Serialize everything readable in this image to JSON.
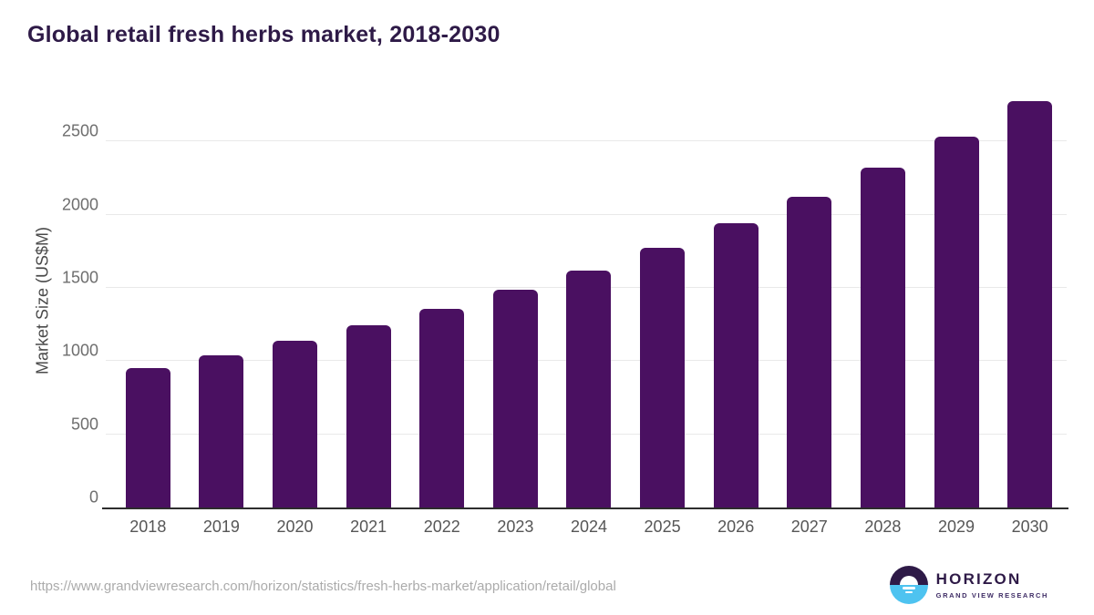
{
  "chart_data": {
    "type": "bar",
    "title": "Global retail fresh herbs market, 2018-2030",
    "categories": [
      "2018",
      "2019",
      "2020",
      "2021",
      "2022",
      "2023",
      "2024",
      "2025",
      "2026",
      "2027",
      "2028",
      "2029",
      "2030"
    ],
    "values": [
      950,
      1040,
      1140,
      1245,
      1360,
      1485,
      1620,
      1775,
      1940,
      2120,
      2320,
      2535,
      2775
    ],
    "xlabel": "",
    "ylabel": "Market Size (US$M)",
    "ylim": [
      0,
      2845
    ],
    "yticks": [
      0,
      500,
      1000,
      1500,
      2000,
      2500
    ],
    "grid": "horizontal",
    "legend": "none",
    "bar_color": "#4a1061"
  },
  "colors": {
    "title": "#2e1a47",
    "bar": "#4a1061",
    "gridline": "#e9e9e9",
    "axis_line": "#2d2d2d",
    "tick_label": "#6e6e6e",
    "logo_top": "#2e1a47",
    "logo_bottom": "#4ec3f0"
  },
  "footer": {
    "source_url": "https://www.grandviewresearch.com/horizon/statistics/fresh-herbs-market/application/retail/global",
    "logo": {
      "brand": "HORIZON",
      "sub_brand": "GRAND VIEW RESEARCH"
    }
  }
}
